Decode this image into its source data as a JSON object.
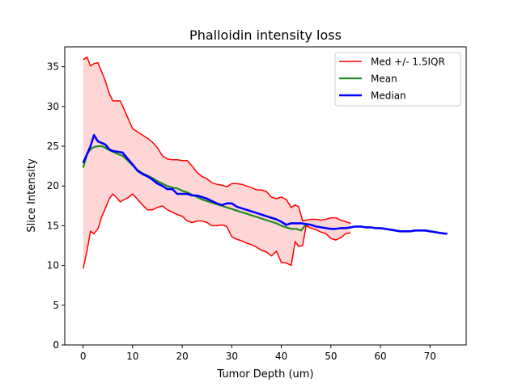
{
  "chart_data": {
    "type": "line",
    "title": "Phalloidin intensity loss",
    "xlabel": "Tumor Depth (um)",
    "ylabel": "Slice Intensity",
    "xlim": [
      -3.7,
      77.3
    ],
    "ylim": [
      0,
      37.5
    ],
    "xticks": [
      0,
      10,
      20,
      30,
      40,
      50,
      60,
      70
    ],
    "yticks": [
      0,
      5,
      10,
      15,
      20,
      25,
      30,
      35
    ],
    "grid": false,
    "legend_position": "top-right",
    "series": [
      {
        "name": "Med +/- 1.5IQR",
        "color": "#ff0000",
        "fill": "#ffd6d6",
        "x_upper": [
          0,
          0.8,
          1.5,
          2.2,
          3.0,
          3.8,
          4.5,
          5.3,
          6.0,
          6.8,
          7.5,
          8.3,
          9.0,
          10.0,
          11.0,
          12.0,
          13.0,
          14.0,
          15.0,
          16.0,
          17.0,
          18.0,
          19.0,
          20.0,
          21.0,
          22.0,
          23.0,
          24.0,
          25.0,
          26.0,
          27.0,
          28.0,
          29.0,
          30.0,
          31.0,
          32.0,
          33.0,
          34.0,
          35.0,
          36.0,
          37.0,
          38.0,
          39.0,
          40.0,
          41.0,
          42.0,
          42.8,
          43.5,
          44.3,
          45.0,
          46.0,
          47.0,
          48.0,
          49.0,
          50.0,
          51.0,
          52.0,
          53.0,
          54.0
        ],
        "upper": [
          35.9,
          36.2,
          35.1,
          35.4,
          35.5,
          34.3,
          33.2,
          31.6,
          30.7,
          30.7,
          30.7,
          29.6,
          28.6,
          27.2,
          26.8,
          26.4,
          26.0,
          25.5,
          24.8,
          23.8,
          23.4,
          23.3,
          23.3,
          23.2,
          23.2,
          22.5,
          21.7,
          21.2,
          20.9,
          20.4,
          20.2,
          20.1,
          19.9,
          20.3,
          20.3,
          20.2,
          20.0,
          19.8,
          19.5,
          19.5,
          19.3,
          18.6,
          18.4,
          18.6,
          18.3,
          17.3,
          17.6,
          17.4,
          15.6,
          15.7,
          15.8,
          15.8,
          15.7,
          15.8,
          16.0,
          16.0,
          15.7,
          15.5,
          15.3
        ],
        "x_lower": [
          0,
          0.8,
          1.5,
          2.2,
          3.0,
          3.8,
          4.5,
          5.3,
          6.0,
          6.8,
          7.5,
          8.3,
          9.0,
          10.0,
          11.0,
          12.0,
          13.0,
          14.0,
          15.0,
          16.0,
          17.0,
          18.0,
          19.0,
          20.0,
          21.0,
          22.0,
          23.0,
          24.0,
          25.0,
          26.0,
          27.0,
          28.0,
          29.0,
          30.0,
          31.0,
          32.0,
          33.0,
          34.0,
          35.0,
          36.0,
          37.0,
          38.0,
          39.0,
          40.0,
          41.0,
          42.0,
          42.8,
          43.5,
          44.3,
          45.0,
          46.0,
          47.0,
          48.0,
          49.0,
          50.0,
          51.0,
          52.0,
          53.0,
          54.0
        ],
        "lower": [
          9.6,
          11.9,
          14.3,
          14.0,
          14.6,
          16.2,
          17.2,
          18.4,
          19.0,
          18.5,
          18.0,
          18.3,
          18.5,
          19.0,
          18.3,
          17.6,
          17.0,
          17.0,
          17.3,
          17.5,
          17.0,
          16.7,
          16.4,
          16.2,
          15.6,
          15.4,
          15.6,
          15.6,
          15.4,
          15.0,
          15.0,
          15.1,
          14.9,
          13.6,
          13.3,
          13.1,
          12.8,
          12.6,
          12.3,
          11.9,
          11.7,
          11.2,
          11.8,
          10.4,
          10.3,
          10.0,
          13.0,
          12.4,
          12.5,
          15.0,
          14.7,
          14.5,
          14.2,
          14.0,
          13.4,
          13.2,
          13.5,
          14.0,
          14.1
        ]
      },
      {
        "name": "Mean",
        "color": "#228b22",
        "x": [
          0,
          0.8,
          1.5,
          2.2,
          3.0,
          3.8,
          4.5,
          5.3,
          6.0,
          7.0,
          8.0,
          9.0,
          10.0,
          11.0,
          12.0,
          13.0,
          14.0,
          15.0,
          16.0,
          17.0,
          18.0,
          19.0,
          20.0,
          21.0,
          22.0,
          23.0,
          24.0,
          25.0,
          26.0,
          27.0,
          28.0,
          29.0,
          30.0,
          31.0,
          32.0,
          33.0,
          34.0,
          35.0,
          36.0,
          37.0,
          38.0,
          39.0,
          40.0,
          41.0,
          42.0,
          43.0,
          44.0,
          45.0
        ],
        "values": [
          22.3,
          24.0,
          24.6,
          24.9,
          25.0,
          25.0,
          24.8,
          24.5,
          24.3,
          24.0,
          23.8,
          23.2,
          22.6,
          22.0,
          21.6,
          21.3,
          21.0,
          20.6,
          20.3,
          20.0,
          19.8,
          19.7,
          19.4,
          19.2,
          18.9,
          18.6,
          18.3,
          18.1,
          17.9,
          17.7,
          17.5,
          17.3,
          17.1,
          16.9,
          16.7,
          16.5,
          16.3,
          16.1,
          15.9,
          15.7,
          15.5,
          15.3,
          15.0,
          14.8,
          14.6,
          14.6,
          14.4,
          15.2
        ]
      },
      {
        "name": "Median",
        "color": "#0000ff",
        "x": [
          0,
          0.8,
          1.5,
          2.2,
          3.0,
          3.8,
          4.5,
          5.3,
          6.0,
          7.0,
          8.0,
          9.0,
          10.0,
          11.0,
          12.0,
          13.0,
          14.0,
          15.0,
          16.0,
          17.0,
          18.0,
          19.0,
          20.0,
          21.0,
          22.0,
          23.0,
          24.0,
          25.0,
          26.0,
          27.0,
          28.0,
          29.0,
          30.0,
          31.0,
          32.0,
          33.0,
          34.0,
          35.0,
          36.0,
          37.0,
          38.0,
          39.0,
          40.0,
          41.0,
          42.0,
          43.0,
          44.0,
          45.0,
          46.0,
          47.0,
          48.0,
          49.0,
          50.0,
          51.0,
          52.0,
          53.0,
          54.0,
          55.0,
          56.0,
          57.0,
          58.0,
          59.0,
          60.0,
          61.0,
          62.0,
          63.0,
          64.0,
          65.0,
          66.0,
          67.0,
          68.0,
          69.0,
          70.0,
          71.0,
          72.0,
          73.0,
          73.5
        ],
        "values": [
          22.9,
          24.0,
          25.0,
          26.4,
          25.6,
          25.4,
          25.2,
          24.6,
          24.4,
          24.3,
          24.2,
          23.4,
          22.7,
          21.9,
          21.5,
          21.2,
          20.8,
          20.3,
          20.0,
          19.6,
          19.6,
          19.0,
          19.0,
          19.0,
          18.8,
          18.8,
          18.6,
          18.4,
          18.1,
          17.8,
          17.6,
          17.8,
          17.8,
          17.4,
          17.2,
          17.0,
          16.8,
          16.6,
          16.4,
          16.2,
          16.0,
          15.8,
          15.5,
          15.1,
          15.3,
          15.3,
          15.3,
          15.2,
          15.1,
          14.9,
          14.8,
          14.7,
          14.6,
          14.6,
          14.7,
          14.7,
          14.8,
          14.9,
          14.9,
          14.8,
          14.8,
          14.7,
          14.7,
          14.6,
          14.5,
          14.4,
          14.3,
          14.3,
          14.3,
          14.4,
          14.4,
          14.4,
          14.3,
          14.2,
          14.1,
          14.0,
          14.0
        ]
      }
    ]
  }
}
